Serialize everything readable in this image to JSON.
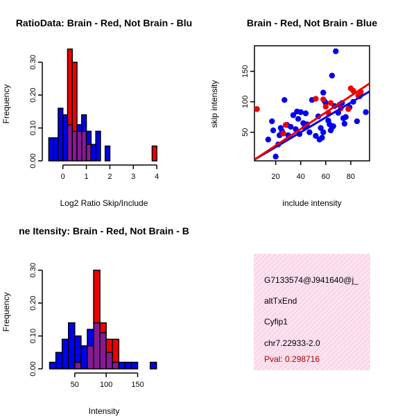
{
  "colors": {
    "blue": "#0000ee",
    "red": "#ee0000",
    "purple": "#7a1e9e",
    "hatch": "#cc0066",
    "info_bg": "#fbe3ef",
    "info_hatch": "#f2b0d0",
    "pval": "#aa0000"
  },
  "info_box": {
    "id": "G7133574@J941640@j_",
    "event_type": "altTxEnd",
    "gene": "Cyfip1",
    "location": "chr7.22933-2.0",
    "pval": "Pval: 0.298716"
  },
  "chart_data": [
    {
      "type": "bar",
      "title": "RatioData: Brain - Red, Not Brain - Blu",
      "xlabel": "Log2 Ratio Skip/Include",
      "ylabel": "Frequency",
      "xlim": [
        -0.7,
        4.2
      ],
      "ylim": [
        0,
        0.35
      ],
      "x_ticks": [
        0,
        1,
        2,
        3,
        4
      ],
      "x_tick_labels": [
        "0",
        "1",
        "2",
        "3",
        "4"
      ],
      "y_ticks": [
        0,
        0.1,
        0.2,
        0.3
      ],
      "y_tick_labels": [
        "0.00",
        "0.10",
        "0.20",
        "0.30"
      ],
      "bin_width": 0.2,
      "series": [
        {
          "name": "Not Brain",
          "color": "blue",
          "bins": [
            [
              -0.6,
              0.07
            ],
            [
              -0.4,
              0.07
            ],
            [
              -0.2,
              0.16
            ],
            [
              0,
              0.14
            ],
            [
              0.2,
              0.11
            ],
            [
              0.4,
              0.09
            ],
            [
              0.6,
              0.11
            ],
            [
              0.8,
              0.14
            ],
            [
              1.0,
              0.09
            ],
            [
              1.2,
              0.05
            ],
            [
              1.4,
              0.09
            ],
            [
              1.8,
              0.045
            ]
          ]
        },
        {
          "name": "Brain",
          "color": "red",
          "bins": [
            [
              0.2,
              0.34
            ],
            [
              0.4,
              0.3
            ],
            [
              0.6,
              0.09
            ],
            [
              0.8,
              0.09
            ],
            [
              1.0,
              0.05
            ],
            [
              3.8,
              0.045
            ]
          ]
        }
      ]
    },
    {
      "type": "scatter",
      "title": "Brain - Red, Not Brain - Blue",
      "xlabel": "include intensity",
      "ylabel": "skip intensity",
      "xlim": [
        3,
        95
      ],
      "ylim": [
        3,
        192
      ],
      "x_ticks": [
        20,
        40,
        60,
        80
      ],
      "x_tick_labels": [
        "20",
        "40",
        "60",
        "80"
      ],
      "y_ticks": [
        50,
        100,
        150
      ],
      "y_tick_labels": [
        "50",
        "100",
        "150"
      ],
      "series": [
        {
          "name": "Not Brain",
          "color": "blue",
          "points": [
            [
              14,
              38
            ],
            [
              17,
              68
            ],
            [
              18,
              53
            ],
            [
              20,
              10
            ],
            [
              22,
              30
            ],
            [
              23,
              45
            ],
            [
              24,
              57
            ],
            [
              25,
              52
            ],
            [
              26,
              48
            ],
            [
              27,
              103
            ],
            [
              29,
              62
            ],
            [
              30,
              45
            ],
            [
              32,
              59
            ],
            [
              34,
              78
            ],
            [
              36,
              55
            ],
            [
              37,
              84
            ],
            [
              38,
              72
            ],
            [
              39,
              47
            ],
            [
              40,
              83
            ],
            [
              42,
              65
            ],
            [
              43,
              58
            ],
            [
              44,
              81
            ],
            [
              45,
              63
            ],
            [
              47,
              50
            ],
            [
              49,
              103
            ],
            [
              52,
              44
            ],
            [
              54,
              76
            ],
            [
              55,
              38
            ],
            [
              56,
              57
            ],
            [
              57,
              41
            ],
            [
              58,
              50
            ],
            [
              58,
              115
            ],
            [
              59,
              101
            ],
            [
              60,
              98
            ],
            [
              62,
              69
            ],
            [
              63,
              63
            ],
            [
              64,
              53
            ],
            [
              65,
              58
            ],
            [
              65,
              143
            ],
            [
              66,
              60
            ],
            [
              67,
              93
            ],
            [
              68,
              183
            ],
            [
              70,
              82
            ],
            [
              71,
              95
            ],
            [
              73,
              98
            ],
            [
              74,
              73
            ],
            [
              75,
              64
            ],
            [
              76,
              75
            ],
            [
              79,
              91
            ],
            [
              82,
              100
            ],
            [
              85,
              68
            ],
            [
              87,
              109
            ],
            [
              92,
              83
            ]
          ]
        },
        {
          "name": "Brain",
          "color": "red",
          "points": [
            [
              5,
              88
            ],
            [
              26,
              48
            ],
            [
              28,
              62
            ],
            [
              52,
              105
            ],
            [
              58,
              104
            ],
            [
              60,
              92
            ],
            [
              62,
              82
            ],
            [
              64,
              98
            ],
            [
              72,
              89
            ],
            [
              78,
              88
            ],
            [
              80,
              122
            ],
            [
              82,
              118
            ],
            [
              86,
              110
            ],
            [
              88,
              116
            ]
          ]
        }
      ],
      "fit_lines": [
        {
          "name": "Not Brain fit",
          "color": "blue",
          "from": [
            3,
            5
          ],
          "to": [
            95,
            117
          ]
        },
        {
          "name": "Brain fit",
          "color": "red",
          "from": [
            3,
            5
          ],
          "to": [
            95,
            130
          ]
        }
      ]
    },
    {
      "type": "bar",
      "title": "ne Itensity: Brain - Red, Not Brain - B",
      "xlabel": "Intensity",
      "ylabel": "Frequency",
      "xlim": [
        5,
        188
      ],
      "ylim": [
        0,
        0.35
      ],
      "x_ticks": [
        50,
        100,
        150
      ],
      "x_tick_labels": [
        "50",
        "100",
        "150"
      ],
      "y_ticks": [
        0,
        0.1,
        0.2,
        0.3
      ],
      "y_tick_labels": [
        "0.00",
        "0.10",
        "0.20",
        "0.30"
      ],
      "bin_width": 10,
      "series": [
        {
          "name": "Not Brain",
          "color": "blue",
          "bins": [
            [
              10,
              0.02
            ],
            [
              20,
              0.05
            ],
            [
              30,
              0.09
            ],
            [
              40,
              0.14
            ],
            [
              50,
              0.1
            ],
            [
              60,
              0.07
            ],
            [
              70,
              0.12
            ],
            [
              80,
              0.14
            ],
            [
              90,
              0.11
            ],
            [
              100,
              0.05
            ],
            [
              110,
              0.02
            ],
            [
              120,
              0.02
            ],
            [
              130,
              0.02
            ],
            [
              140,
              0.02
            ],
            [
              170,
              0.02
            ]
          ]
        },
        {
          "name": "Brain",
          "color": "red",
          "bins": [
            [
              50,
              0.02
            ],
            [
              70,
              0.07
            ],
            [
              80,
              0.3
            ],
            [
              90,
              0.14
            ],
            [
              100,
              0.09
            ],
            [
              110,
              0.09
            ]
          ]
        }
      ]
    }
  ]
}
